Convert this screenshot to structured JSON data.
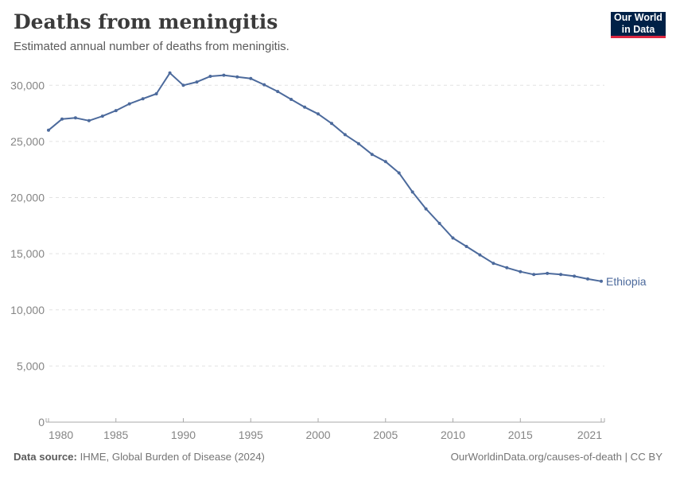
{
  "header": {
    "title": "Deaths from meningitis",
    "subtitle": "Estimated annual number of deaths from meningitis.",
    "logo": {
      "line1": "Our World",
      "line2": "in Data",
      "bg_color": "#002147",
      "accent_color": "#dc2740"
    }
  },
  "chart_data": {
    "type": "line",
    "title": "Deaths from meningitis",
    "subtitle": "Estimated annual number of deaths from meningitis.",
    "entity_label": "Ethiopia",
    "line_color": "#4C6A9C",
    "grid_color": "#e2e2e2",
    "axis_color": "#a9a9a9",
    "tick_text_color": "#858585",
    "grid": true,
    "legend_position": "end-of-line",
    "x": [
      1980,
      1981,
      1982,
      1983,
      1984,
      1985,
      1986,
      1987,
      1988,
      1989,
      1990,
      1991,
      1992,
      1993,
      1994,
      1995,
      1996,
      1997,
      1998,
      1999,
      2000,
      2001,
      2002,
      2003,
      2004,
      2005,
      2006,
      2007,
      2008,
      2009,
      2010,
      2011,
      2012,
      2013,
      2014,
      2015,
      2016,
      2017,
      2018,
      2019,
      2020,
      2021
    ],
    "series": [
      {
        "name": "Ethiopia",
        "values": [
          26000,
          27000,
          27100,
          26850,
          27250,
          27750,
          28350,
          28800,
          29240,
          31100,
          30000,
          30300,
          30800,
          30900,
          30750,
          30600,
          30050,
          29450,
          28750,
          28050,
          27450,
          26600,
          25600,
          24800,
          23850,
          23200,
          22200,
          20500,
          19000,
          17700,
          16400,
          15650,
          14900,
          14150,
          13750,
          13400,
          13150,
          13250,
          13150,
          13000,
          12750,
          12550
        ]
      }
    ],
    "xlabel": "",
    "ylabel": "",
    "ylim": [
      0,
      31200
    ],
    "yticks": [
      0,
      5000,
      10000,
      15000,
      20000,
      25000,
      30000
    ],
    "ytick_labels": [
      "0",
      "5,000",
      "10,000",
      "15,000",
      "20,000",
      "25,000",
      "30,000"
    ],
    "xticks": [
      1980,
      1985,
      1990,
      1995,
      2000,
      2005,
      2010,
      2015,
      2021
    ],
    "xtick_labels": [
      "1980",
      "1985",
      "1990",
      "1995",
      "2000",
      "2005",
      "2010",
      "2015",
      "2021"
    ]
  },
  "footer": {
    "source_label": "Data source:",
    "source_text": "IHME, Global Burden of Disease (2024)",
    "link_text": "OurWorldinData.org/causes-of-death | CC BY"
  }
}
